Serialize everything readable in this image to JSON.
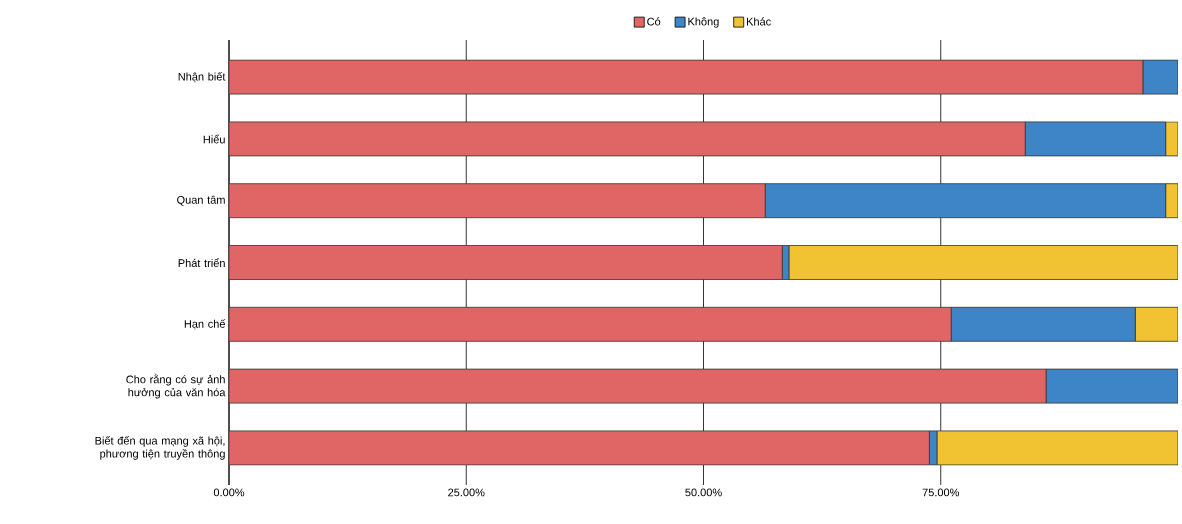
{
  "chart_data": {
    "type": "bar",
    "orientation": "horizontal",
    "stacked": true,
    "categories": [
      "Nhận biết",
      "Hiểu",
      "Quan tâm",
      "Phát triển",
      "Hạn chế",
      "Cho rằng có sự ảnh hưởng của văn hóa",
      "Biết đến qua mạng xã hội, phương tiện truyền thông"
    ],
    "series": [
      {
        "name": "Có",
        "color": "#e06666",
        "values": [
          96.3,
          83.9,
          56.5,
          58.3,
          76.1,
          86.1,
          73.8
        ]
      },
      {
        "name": "Không",
        "color": "#3d85c6",
        "values": [
          3.7,
          14.8,
          42.2,
          0.7,
          19.4,
          13.9,
          0.8
        ]
      },
      {
        "name": "Khác",
        "color": "#f1c232",
        "values": [
          0,
          1.3,
          1.3,
          41.0,
          4.5,
          0,
          25.4
        ]
      }
    ],
    "xlim": [
      0,
      100
    ],
    "xticks": [
      {
        "value": 0,
        "label": "0.00%"
      },
      {
        "value": 25,
        "label": "25.00%"
      },
      {
        "value": 50,
        "label": "50.00%"
      },
      {
        "value": 75,
        "label": "75.00%"
      }
    ],
    "grid": "x",
    "legend": "top"
  }
}
